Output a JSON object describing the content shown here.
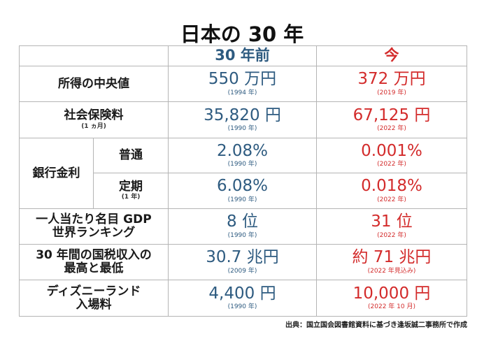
{
  "title": "日本の 30 年",
  "header": {
    "past": "30 年前",
    "now": "今"
  },
  "colors": {
    "past": "#2e5b80",
    "now": "#d32b2b"
  },
  "rows": [
    {
      "label": "所得の中央値",
      "past": {
        "value": "550 万円",
        "year": "(1994 年)"
      },
      "now": {
        "value": "372 万円",
        "year": "(2019 年)"
      }
    },
    {
      "label": "社会保険料",
      "note": "(1 ヵ月)",
      "past": {
        "value": "35,820 円",
        "year": "(1990 年)"
      },
      "now": {
        "value": "67,125 円",
        "year": "(2022 年)"
      }
    },
    {
      "label": "普通",
      "past": {
        "value": "2.08%",
        "year": "(1990 年)"
      },
      "now": {
        "value": "0.001%",
        "year": "(2022 年)"
      }
    },
    {
      "label": "定期",
      "note": "(1 年)",
      "past": {
        "value": "6.08%",
        "year": "(1990 年)"
      },
      "now": {
        "value": "0.018%",
        "year": "(2022 年)"
      }
    },
    {
      "label": "一人当たり名目 GDP",
      "label2": "世界ランキング",
      "past": {
        "value": "8 位",
        "year": "(1990 年)"
      },
      "now": {
        "value": "31 位",
        "year": "(2022 年)"
      }
    },
    {
      "label": "30 年間の国税収入の",
      "label2": "最高と最低",
      "past": {
        "value": "30.7 兆円",
        "year": "(2009 年)"
      },
      "now": {
        "value": "約 71 兆円",
        "year": "(2022 年見込み)"
      }
    },
    {
      "label": "ディズニーランド",
      "label2": "入場料",
      "past": {
        "value": "4,400 円",
        "year": "(1990 年)"
      },
      "now": {
        "value": "10,000 円",
        "year": "(2022 年 10 月)"
      }
    }
  ],
  "bank_group_label": "銀行金利",
  "source": "出典：国立国会図書館資料に基づき逢坂誠二事務所で作成"
}
